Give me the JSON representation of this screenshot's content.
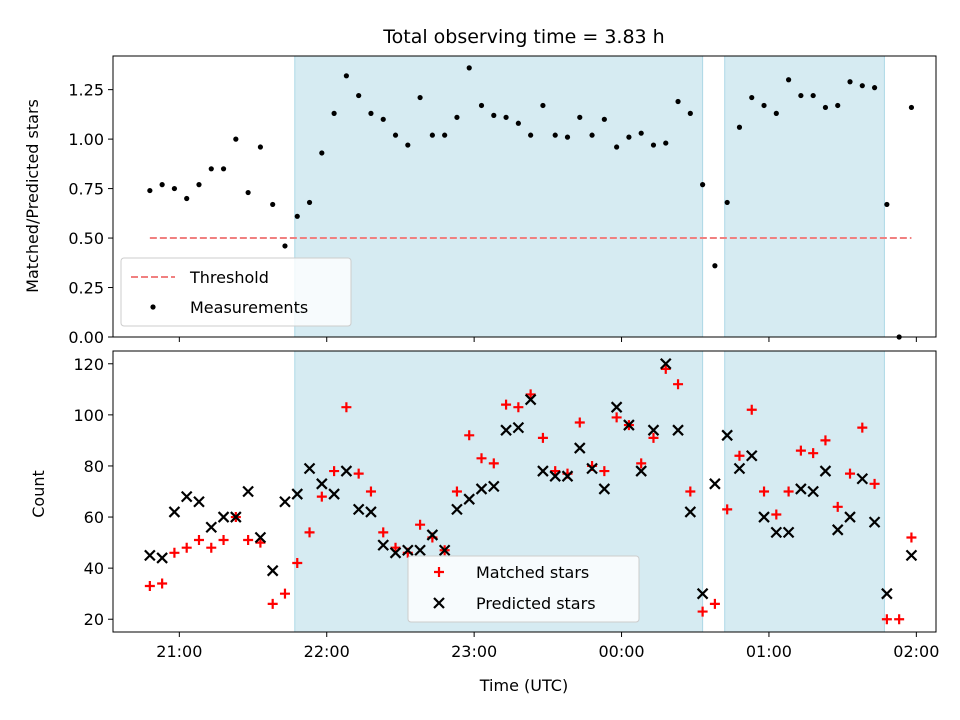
{
  "chart_data": [
    {
      "type": "scatter",
      "title": "Total observing time = 3.83 h",
      "xlabel": "",
      "ylabel": "Matched/Predicted stars",
      "ylim": [
        0,
        1.42
      ],
      "yticks": [
        0.0,
        0.25,
        0.5,
        0.75,
        1.0,
        1.25
      ],
      "ytick_labels": [
        "0.00",
        "0.25",
        "0.50",
        "0.75",
        "1.00",
        "1.25"
      ],
      "shaded_spans": [
        [
          "21:47",
          "00:33"
        ],
        [
          "00:42",
          "01:47"
        ]
      ],
      "legend_location": "lower left",
      "series": [
        {
          "name": "Threshold",
          "style": "dashed-line",
          "color": "#f08080",
          "x": [
            "20:48",
            "01:58"
          ],
          "y": [
            0.5,
            0.5
          ]
        },
        {
          "name": "Measurements",
          "style": "dot",
          "color": "#000000",
          "x": [
            "20:48",
            "20:53",
            "20:58",
            "21:03",
            "21:08",
            "21:13",
            "21:18",
            "21:23",
            "21:28",
            "21:33",
            "21:38",
            "21:43",
            "21:48",
            "21:53",
            "21:58",
            "22:03",
            "22:08",
            "22:13",
            "22:18",
            "22:23",
            "22:28",
            "22:33",
            "22:38",
            "22:43",
            "22:48",
            "22:53",
            "22:58",
            "23:03",
            "23:08",
            "23:13",
            "23:18",
            "23:23",
            "23:28",
            "23:33",
            "23:38",
            "23:43",
            "23:48",
            "23:53",
            "23:58",
            "00:03",
            "00:08",
            "00:13",
            "00:18",
            "00:23",
            "00:28",
            "00:33",
            "00:38",
            "00:43",
            "00:48",
            "00:53",
            "00:58",
            "01:03",
            "01:08",
            "01:13",
            "01:18",
            "01:23",
            "01:28",
            "01:33",
            "01:38",
            "01:43",
            "01:48",
            "01:53",
            "01:58"
          ],
          "y": [
            0.74,
            0.77,
            0.75,
            0.7,
            0.77,
            0.85,
            0.85,
            1.0,
            0.73,
            0.96,
            0.67,
            0.46,
            0.61,
            0.68,
            0.93,
            1.13,
            1.32,
            1.22,
            1.13,
            1.1,
            1.02,
            0.97,
            1.21,
            1.02,
            1.02,
            1.11,
            1.36,
            1.17,
            1.12,
            1.11,
            1.08,
            1.02,
            1.17,
            1.02,
            1.01,
            1.11,
            1.02,
            1.1,
            0.96,
            1.01,
            1.03,
            0.97,
            0.98,
            1.19,
            1.13,
            0.77,
            0.36,
            0.68,
            1.06,
            1.21,
            1.17,
            1.13,
            1.3,
            1.22,
            1.22,
            1.16,
            1.17,
            1.29,
            1.27,
            1.26,
            0.67,
            0.0,
            1.16
          ]
        }
      ]
    },
    {
      "type": "scatter",
      "title": "",
      "xlabel": "Time (UTC)",
      "ylabel": "Count",
      "ylim": [
        15,
        125
      ],
      "yticks": [
        20,
        40,
        60,
        80,
        100,
        120
      ],
      "ytick_labels": [
        "20",
        "40",
        "60",
        "80",
        "100",
        "120"
      ],
      "xlim": [
        "20:33",
        "02:08"
      ],
      "xticks": [
        "21:00",
        "22:00",
        "23:00",
        "00:00",
        "01:00",
        "02:00"
      ],
      "xtick_labels": [
        "21:00",
        "22:00",
        "23:00",
        "00:00",
        "01:00",
        "02:00"
      ],
      "shaded_spans": [
        [
          "21:47",
          "00:33"
        ],
        [
          "00:42",
          "01:47"
        ]
      ],
      "legend_location": "lower center",
      "series": [
        {
          "name": "Matched stars",
          "style": "plus",
          "color": "#ff0000",
          "x": [
            "20:48",
            "20:53",
            "20:58",
            "21:03",
            "21:08",
            "21:13",
            "21:18",
            "21:23",
            "21:28",
            "21:33",
            "21:38",
            "21:43",
            "21:48",
            "21:53",
            "21:58",
            "22:03",
            "22:08",
            "22:13",
            "22:18",
            "22:23",
            "22:28",
            "22:33",
            "22:38",
            "22:43",
            "22:48",
            "22:53",
            "22:58",
            "23:03",
            "23:08",
            "23:13",
            "23:18",
            "23:23",
            "23:28",
            "23:33",
            "23:38",
            "23:43",
            "23:48",
            "23:53",
            "23:58",
            "00:03",
            "00:08",
            "00:13",
            "00:18",
            "00:23",
            "00:28",
            "00:33",
            "00:38",
            "00:43",
            "00:48",
            "00:53",
            "00:58",
            "01:03",
            "01:08",
            "01:13",
            "01:18",
            "01:23",
            "01:28",
            "01:33",
            "01:38",
            "01:43",
            "01:48",
            "01:53",
            "01:58"
          ],
          "y": [
            33,
            34,
            46,
            48,
            51,
            48,
            51,
            60,
            51,
            50,
            26,
            30,
            42,
            54,
            68,
            78,
            103,
            77,
            70,
            54,
            48,
            46,
            57,
            52,
            47,
            70,
            92,
            83,
            81,
            104,
            103,
            108,
            91,
            78,
            77,
            97,
            80,
            78,
            99,
            96,
            81,
            91,
            118,
            112,
            70,
            23,
            26,
            63,
            84,
            102,
            70,
            61,
            70,
            86,
            85,
            90,
            64,
            77,
            95,
            73,
            20,
            20,
            52
          ]
        },
        {
          "name": "Predicted stars",
          "style": "x",
          "color": "#000000",
          "x": [
            "20:48",
            "20:53",
            "20:58",
            "21:03",
            "21:08",
            "21:13",
            "21:18",
            "21:23",
            "21:28",
            "21:33",
            "21:38",
            "21:43",
            "21:48",
            "21:53",
            "21:58",
            "22:03",
            "22:08",
            "22:13",
            "22:18",
            "22:23",
            "22:28",
            "22:33",
            "22:38",
            "22:43",
            "22:48",
            "22:53",
            "22:58",
            "23:03",
            "23:08",
            "23:13",
            "23:18",
            "23:23",
            "23:28",
            "23:33",
            "23:38",
            "23:43",
            "23:48",
            "23:53",
            "23:58",
            "00:03",
            "00:08",
            "00:13",
            "00:18",
            "00:23",
            "00:28",
            "00:33",
            "00:38",
            "00:43",
            "00:48",
            "00:53",
            "00:58",
            "01:03",
            "01:08",
            "01:13",
            "01:18",
            "01:23",
            "01:28",
            "01:33",
            "01:38",
            "01:43",
            "01:48",
            "01:53",
            "01:58"
          ],
          "y": [
            45,
            44,
            62,
            68,
            66,
            56,
            60,
            60,
            70,
            52,
            39,
            66,
            69,
            79,
            73,
            69,
            78,
            63,
            62,
            49,
            46,
            47,
            47,
            53,
            47,
            63,
            67,
            71,
            72,
            94,
            95,
            106,
            78,
            76,
            76,
            87,
            79,
            71,
            103,
            96,
            78,
            94,
            120,
            94,
            62,
            30,
            73,
            92,
            79,
            84,
            60,
            54,
            54,
            71,
            70,
            78,
            55,
            60,
            75,
            58,
            30,
            null,
            45
          ]
        }
      ]
    }
  ]
}
